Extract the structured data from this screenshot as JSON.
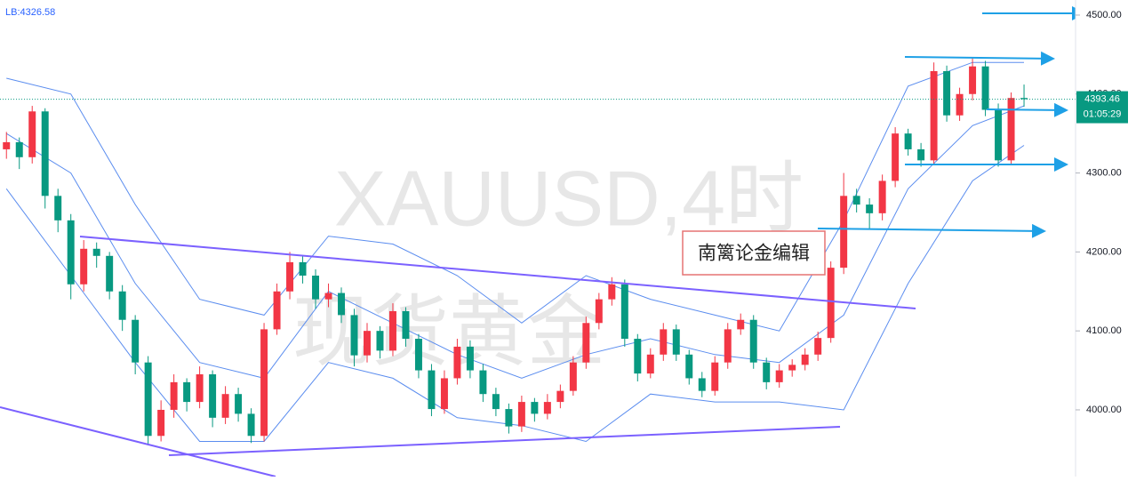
{
  "chart_data": {
    "type": "candlestick",
    "legend_text": "LB:4326.58",
    "watermark": "XAUUSD,4时",
    "watermark_2": "现货黄金",
    "note": "南篱论金编辑",
    "countdown": "01:05:29",
    "up_color": "#f23645",
    "down_color": "#089981",
    "band_color": "#5b8def",
    "xlim": [
      0,
      83.5
    ],
    "ylim": [
      3915.5,
      4519.1
    ],
    "yticks": [
      {
        "value": 4000,
        "label": "4000.00"
      },
      {
        "value": 4100,
        "label": "4100.00"
      },
      {
        "value": 4200,
        "label": "4200.00"
      },
      {
        "value": 4300,
        "label": "4300.00"
      },
      {
        "value": 4400,
        "label": "4400.00"
      },
      {
        "value": 4500,
        "label": "4500.00"
      }
    ],
    "candles": [
      [
        4330,
        4352,
        4318,
        4339
      ],
      [
        4339,
        4345,
        4305,
        4320
      ],
      [
        4320,
        4385,
        4312,
        4378
      ],
      [
        4378,
        4382,
        4255,
        4271
      ],
      [
        4271,
        4280,
        4225,
        4240
      ],
      [
        4240,
        4248,
        4140,
        4159
      ],
      [
        4159,
        4215,
        4150,
        4204
      ],
      [
        4204,
        4212,
        4180,
        4195
      ],
      [
        4195,
        4200,
        4140,
        4150
      ],
      [
        4150,
        4158,
        4100,
        4114
      ],
      [
        4114,
        4120,
        4045,
        4060
      ],
      [
        4060,
        4068,
        3955,
        3967
      ],
      [
        3967,
        4012,
        3960,
        4000
      ],
      [
        4000,
        4045,
        3990,
        4035
      ],
      [
        4035,
        4040,
        3998,
        4010
      ],
      [
        4010,
        4055,
        4002,
        4045
      ],
      [
        4045,
        4050,
        3978,
        3990
      ],
      [
        3990,
        4030,
        3982,
        4020
      ],
      [
        4020,
        4028,
        3985,
        3995
      ],
      [
        3995,
        4002,
        3958,
        3967
      ],
      [
        3967,
        4110,
        3960,
        4102
      ],
      [
        4102,
        4160,
        4095,
        4150
      ],
      [
        4150,
        4200,
        4140,
        4187
      ],
      [
        4187,
        4195,
        4160,
        4170
      ],
      [
        4170,
        4178,
        4128,
        4140
      ],
      [
        4140,
        4160,
        4130,
        4148
      ],
      [
        4148,
        4155,
        4110,
        4120
      ],
      [
        4120,
        4128,
        4055,
        4069
      ],
      [
        4069,
        4110,
        4060,
        4100
      ],
      [
        4100,
        4106,
        4065,
        4075
      ],
      [
        4075,
        4135,
        4068,
        4125
      ],
      [
        4125,
        4130,
        4080,
        4090
      ],
      [
        4090,
        4096,
        4040,
        4050
      ],
      [
        4050,
        4058,
        3992,
        4001
      ],
      [
        4001,
        4050,
        3995,
        4040
      ],
      [
        4040,
        4090,
        4032,
        4080
      ],
      [
        4080,
        4088,
        4040,
        4050
      ],
      [
        4050,
        4058,
        4010,
        4020
      ],
      [
        4020,
        4028,
        3992,
        4001
      ],
      [
        4001,
        4008,
        3970,
        3979
      ],
      [
        3979,
        4018,
        3972,
        4010
      ],
      [
        4010,
        4015,
        3985,
        3995
      ],
      [
        3995,
        4020,
        3988,
        4010
      ],
      [
        4010,
        4032,
        4002,
        4024
      ],
      [
        4024,
        4068,
        4018,
        4060
      ],
      [
        4060,
        4118,
        4052,
        4110
      ],
      [
        4110,
        4148,
        4102,
        4140
      ],
      [
        4140,
        4168,
        4132,
        4159
      ],
      [
        4159,
        4165,
        4080,
        4090
      ],
      [
        4090,
        4096,
        4036,
        4046
      ],
      [
        4046,
        4078,
        4040,
        4070
      ],
      [
        4070,
        4110,
        4062,
        4102
      ],
      [
        4102,
        4108,
        4062,
        4070
      ],
      [
        4070,
        4076,
        4032,
        4040
      ],
      [
        4040,
        4048,
        4016,
        4024
      ],
      [
        4024,
        4068,
        4018,
        4060
      ],
      [
        4060,
        4110,
        4052,
        4102
      ],
      [
        4102,
        4122,
        4095,
        4114
      ],
      [
        4114,
        4120,
        4052,
        4060
      ],
      [
        4060,
        4066,
        4026,
        4035
      ],
      [
        4035,
        4058,
        4028,
        4050
      ],
      [
        4050,
        4064,
        4042,
        4057
      ],
      [
        4057,
        4078,
        4050,
        4070
      ],
      [
        4070,
        4099,
        4062,
        4091
      ],
      [
        4091,
        4188,
        4085,
        4180
      ],
      [
        4180,
        4300,
        4172,
        4271
      ],
      [
        4271,
        4280,
        4250,
        4260
      ],
      [
        4260,
        4268,
        4228,
        4249
      ],
      [
        4249,
        4298,
        4240,
        4290
      ],
      [
        4290,
        4358,
        4282,
        4350
      ],
      [
        4350,
        4356,
        4322,
        4330
      ],
      [
        4330,
        4338,
        4308,
        4316
      ],
      [
        4316,
        4440,
        4310,
        4429
      ],
      [
        4429,
        4436,
        4365,
        4373
      ],
      [
        4373,
        4408,
        4366,
        4400
      ],
      [
        4400,
        4446,
        4392,
        4435
      ],
      [
        4435,
        4442,
        4372,
        4380
      ],
      [
        4380,
        4388,
        4308,
        4316
      ],
      [
        4316,
        4402,
        4310,
        4395
      ],
      [
        4395,
        4412,
        4384,
        4393.46
      ]
    ],
    "band_x": [
      0,
      5,
      10,
      15,
      20,
      25,
      30,
      35,
      40,
      45,
      50,
      55,
      60,
      65,
      70,
      75,
      79
    ],
    "bands": [
      {
        "values": [
          4420,
          4400,
          4260,
          4140,
          4120,
          4220,
          4210,
          4170,
          4110,
          4170,
          4140,
          4120,
          4100,
          4240,
          4410,
          4440,
          4440
        ]
      },
      {
        "values": [
          4350,
          4300,
          4160,
          4060,
          4040,
          4150,
          4110,
          4070,
          4040,
          4070,
          4090,
          4070,
          4060,
          4120,
          4280,
          4360,
          4385
        ]
      },
      {
        "values": [
          4280,
          4170,
          4060,
          3960,
          3960,
          4060,
          4040,
          3990,
          3980,
          3960,
          4020,
          4010,
          4010,
          4000,
          4160,
          4290,
          4335
        ]
      }
    ]
  }
}
